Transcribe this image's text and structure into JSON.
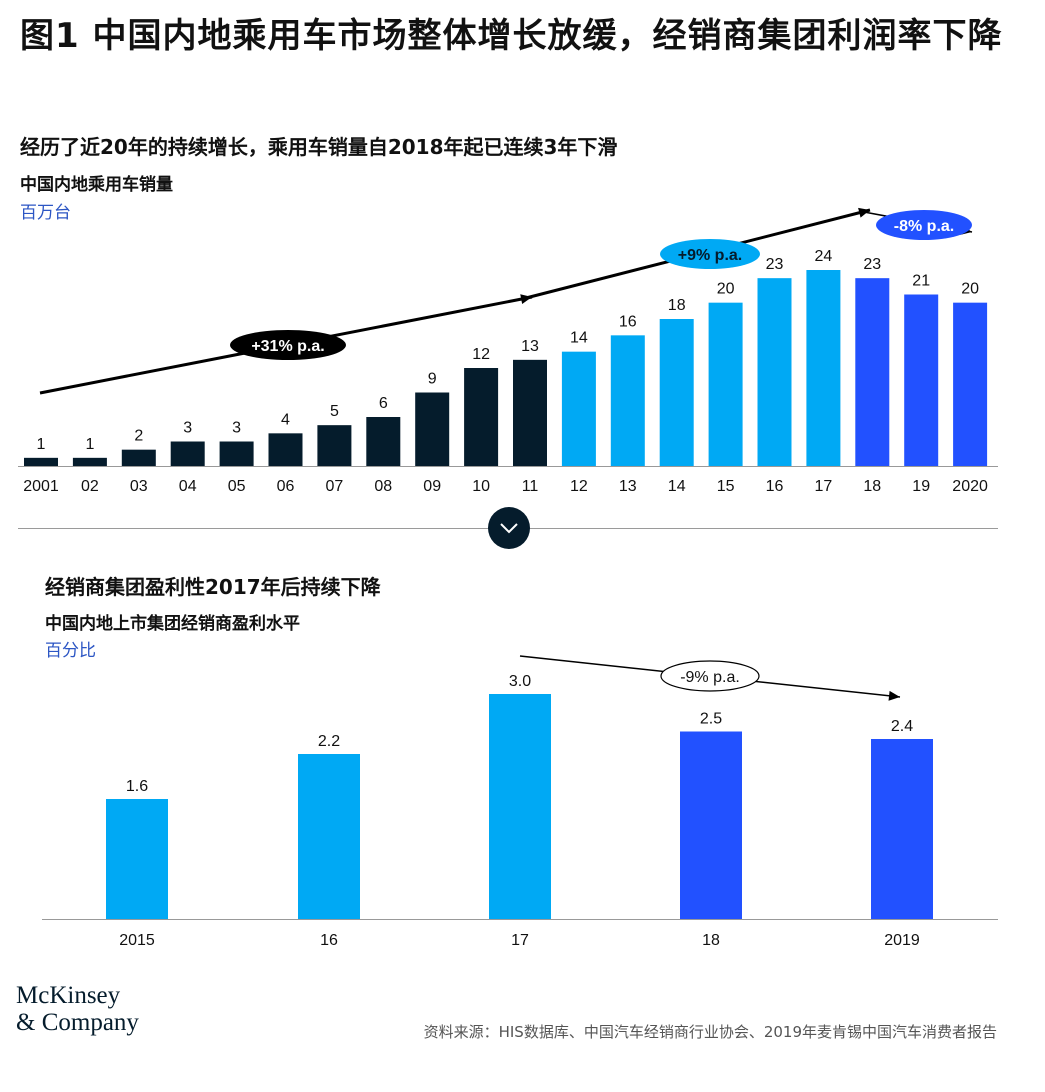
{
  "title": "图1 中国内地乘用车市场整体增长放缓，经销商集团利润率下降",
  "chart_data": [
    {
      "type": "bar",
      "subtitle": "经历了近20年的持续增长，乘用车销量自2018年起已连续3年下滑",
      "ylabel": "中国内地乘用车销量",
      "unit": "百万台",
      "categories": [
        "2001",
        "02",
        "03",
        "04",
        "05",
        "06",
        "07",
        "08",
        "09",
        "10",
        "11",
        "12",
        "13",
        "14",
        "15",
        "16",
        "17",
        "18",
        "19",
        "2020"
      ],
      "values": [
        1,
        1,
        2,
        3,
        3,
        4,
        5,
        6,
        9,
        12,
        13,
        14,
        16,
        18,
        20,
        23,
        24,
        23,
        21,
        20
      ],
      "ylim": [
        0,
        24
      ],
      "colors": [
        "#051c2c",
        "#051c2c",
        "#051c2c",
        "#051c2c",
        "#051c2c",
        "#051c2c",
        "#051c2c",
        "#051c2c",
        "#051c2c",
        "#051c2c",
        "#051c2c",
        "#00a9f4",
        "#00a9f4",
        "#00a9f4",
        "#00a9f4",
        "#00a9f4",
        "#00a9f4",
        "#2251ff",
        "#2251ff",
        "#2251ff"
      ],
      "annotations": [
        {
          "label": "+31% p.a.",
          "from": "2001",
          "to": "11",
          "color": "#000000",
          "text_color": "#ffffff"
        },
        {
          "label": "+9% p.a.",
          "from": "11",
          "to": "17",
          "color": "#00a9f4",
          "text_color": "#051c2c"
        },
        {
          "label": "-8% p.a.",
          "from": "17",
          "to": "2020",
          "color": "#2251ff",
          "text_color": "#ffffff"
        }
      ],
      "grid": false
    },
    {
      "type": "bar",
      "subtitle": "经销商集团盈利性2017年后持续下降",
      "ylabel": "中国内地上市集团经销商盈利水平",
      "unit": "百分比",
      "categories": [
        "2015",
        "16",
        "17",
        "18",
        "2019"
      ],
      "values": [
        1.6,
        2.2,
        3.0,
        2.5,
        2.4
      ],
      "value_labels": [
        "1.6",
        "2.2",
        "3.0",
        "2.5",
        "2.4"
      ],
      "ylim": [
        0,
        3.0
      ],
      "colors": [
        "#00a9f4",
        "#00a9f4",
        "#00a9f4",
        "#2251ff",
        "#2251ff"
      ],
      "annotations": [
        {
          "label": "-9% p.a.",
          "from": "17",
          "to": "2019",
          "color": "#ffffff",
          "text_color": "#111111"
        }
      ],
      "grid": false
    }
  ],
  "logo": {
    "line1": "McKinsey",
    "line2": "& Company"
  },
  "source": "资料来源：HIS数据库、中国汽车经销商行业协会、2019年麦肯锡中国汽车消费者报告",
  "icons": {
    "divider_button": "chevron-down-icon"
  }
}
